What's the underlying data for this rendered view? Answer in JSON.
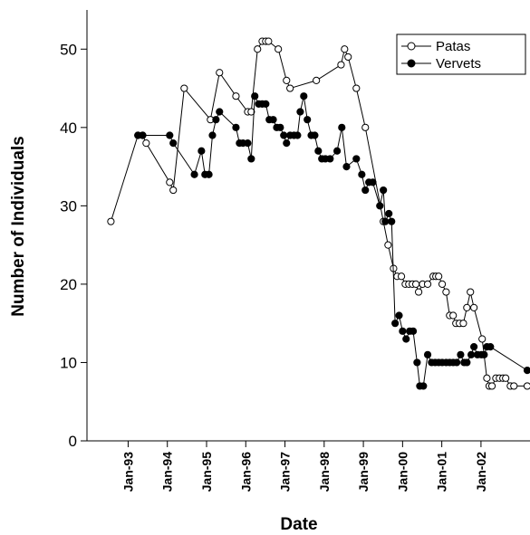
{
  "chart_data": {
    "type": "line",
    "x_label": "Date",
    "y_label": "Number of Individuals",
    "xlim": [
      1991.95,
      2003.25
    ],
    "ylim": [
      0,
      55
    ],
    "xticks": [
      {
        "value": 1993,
        "label": "Jan-93"
      },
      {
        "value": 1994,
        "label": "Jan-94"
      },
      {
        "value": 1995,
        "label": "Jan-95"
      },
      {
        "value": 1996,
        "label": "Jan-96"
      },
      {
        "value": 1997,
        "label": "Jan-97"
      },
      {
        "value": 1998,
        "label": "Jan-98"
      },
      {
        "value": 1999,
        "label": "Jan-99"
      },
      {
        "value": 2000,
        "label": "Jan-00"
      },
      {
        "value": 2001,
        "label": "Jan-01"
      },
      {
        "value": 2002,
        "label": "Jan-02"
      }
    ],
    "yticks": [
      0,
      10,
      20,
      30,
      40,
      50
    ],
    "legend": "upper right",
    "series": [
      {
        "name": "Patas",
        "color": "#000000",
        "marker_fill": "#ffffff",
        "x": [
          1992.56,
          1993.25,
          1993.37,
          1993.46,
          1994.06,
          1994.15,
          1994.43,
          1995.1,
          1995.33,
          1995.75,
          1996.05,
          1996.14,
          1996.3,
          1996.42,
          1996.51,
          1996.58,
          1996.83,
          1997.04,
          1997.13,
          1997.8,
          1998.43,
          1998.52,
          1998.61,
          1998.82,
          1999.05,
          1999.51,
          1999.63,
          1999.77,
          1999.86,
          1999.97,
          2000.07,
          2000.16,
          2000.25,
          2000.34,
          2000.41,
          2000.51,
          2000.64,
          2000.78,
          2000.85,
          2000.92,
          2001.01,
          2001.11,
          2001.2,
          2001.29,
          2001.36,
          2001.45,
          2001.55,
          2001.64,
          2001.73,
          2001.82,
          2002.03,
          2002.15,
          2002.21,
          2002.28,
          2002.38,
          2002.47,
          2002.56,
          2002.63,
          2002.75,
          2002.84,
          2003.18
        ],
        "values": [
          28,
          39,
          39,
          38,
          33,
          32,
          45,
          41,
          47,
          44,
          42,
          42,
          50,
          51,
          51,
          51,
          50,
          46,
          45,
          46,
          48,
          50,
          49,
          45,
          40,
          28,
          25,
          22,
          21,
          21,
          20,
          20,
          20,
          20,
          19,
          20,
          20,
          21,
          21,
          21,
          20,
          19,
          16,
          16,
          15,
          15,
          15,
          17,
          19,
          17,
          13,
          8,
          7,
          7,
          8,
          8,
          8,
          8,
          7,
          7,
          7
        ]
      },
      {
        "name": "Vervets",
        "color": "#000000",
        "marker_fill": "#000000",
        "x": [
          1993.25,
          1993.37,
          1994.06,
          1994.15,
          1994.69,
          1994.87,
          1994.96,
          1995.06,
          1995.15,
          1995.24,
          1995.33,
          1995.75,
          1995.84,
          1995.93,
          1996.05,
          1996.14,
          1996.23,
          1996.33,
          1996.42,
          1996.51,
          1996.6,
          1996.7,
          1996.79,
          1996.88,
          1996.97,
          1997.04,
          1997.13,
          1997.23,
          1997.32,
          1997.39,
          1997.48,
          1997.57,
          1997.67,
          1997.76,
          1997.85,
          1997.94,
          1998.03,
          1998.15,
          1998.33,
          1998.45,
          1998.57,
          1998.82,
          1998.96,
          1999.05,
          1999.14,
          1999.24,
          1999.42,
          1999.51,
          1999.56,
          1999.65,
          1999.72,
          1999.81,
          1999.91,
          2000.0,
          2000.09,
          2000.18,
          2000.27,
          2000.37,
          2000.44,
          2000.53,
          2000.64,
          2000.74,
          2000.83,
          2000.92,
          2001.01,
          2001.11,
          2001.2,
          2001.29,
          2001.38,
          2001.48,
          2001.57,
          2001.64,
          2001.75,
          2001.82,
          2001.91,
          2002.01,
          2002.08,
          2002.15,
          2002.24,
          2003.18
        ],
        "values": [
          39,
          39,
          39,
          38,
          34,
          37,
          34,
          34,
          39,
          41,
          42,
          40,
          38,
          38,
          38,
          36,
          44,
          43,
          43,
          43,
          41,
          41,
          40,
          40,
          39,
          38,
          39,
          39,
          39,
          42,
          44,
          41,
          39,
          39,
          37,
          36,
          36,
          36,
          37,
          40,
          35,
          36,
          34,
          32,
          33,
          33,
          30,
          32,
          28,
          29,
          28,
          15,
          16,
          14,
          13,
          14,
          14,
          10,
          7,
          7,
          11,
          10,
          10,
          10,
          10,
          10,
          10,
          10,
          10,
          11,
          10,
          10,
          11,
          12,
          11,
          11,
          11,
          12,
          12,
          9
        ]
      }
    ]
  }
}
